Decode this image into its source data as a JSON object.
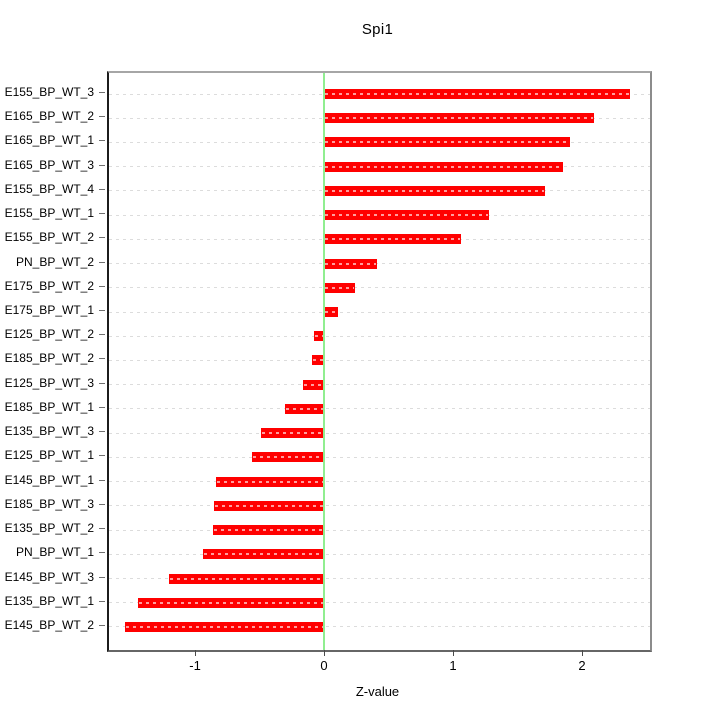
{
  "chart_data": {
    "type": "bar",
    "orientation": "horizontal",
    "title": "Spi1",
    "xlabel": "Z-value",
    "ylabel": "",
    "xlim": [
      -1.667,
      2.527
    ],
    "x_ticks": [
      -1,
      0,
      1,
      2
    ],
    "grid": "horizontal dashed gridline at each category row",
    "legend": "none",
    "zero_reference_line": 0,
    "categories": [
      "E155_BP_WT_3",
      "E165_BP_WT_2",
      "E165_BP_WT_1",
      "E165_BP_WT_3",
      "E155_BP_WT_4",
      "E155_BP_WT_1",
      "E155_BP_WT_2",
      "PN_BP_WT_2",
      "E175_BP_WT_2",
      "E175_BP_WT_1",
      "E125_BP_WT_2",
      "E185_BP_WT_2",
      "E125_BP_WT_3",
      "E185_BP_WT_1",
      "E135_BP_WT_3",
      "E125_BP_WT_1",
      "E145_BP_WT_1",
      "E185_BP_WT_3",
      "E135_BP_WT_2",
      "PN_BP_WT_1",
      "E145_BP_WT_3",
      "E135_BP_WT_1",
      "E145_BP_WT_2"
    ],
    "values": [
      2.37,
      2.09,
      1.91,
      1.85,
      1.71,
      1.28,
      1.06,
      0.41,
      0.24,
      0.11,
      -0.08,
      -0.09,
      -0.16,
      -0.3,
      -0.49,
      -0.56,
      -0.84,
      -0.85,
      -0.86,
      -0.94,
      -1.2,
      -1.44,
      -1.54
    ],
    "colors": {
      "bar": "#ff0000",
      "bar_inner_dash": "#ff9d9d",
      "zero_line": "#90ee90",
      "gridline": "#dcdcdc",
      "axis_text": "#000000"
    }
  }
}
